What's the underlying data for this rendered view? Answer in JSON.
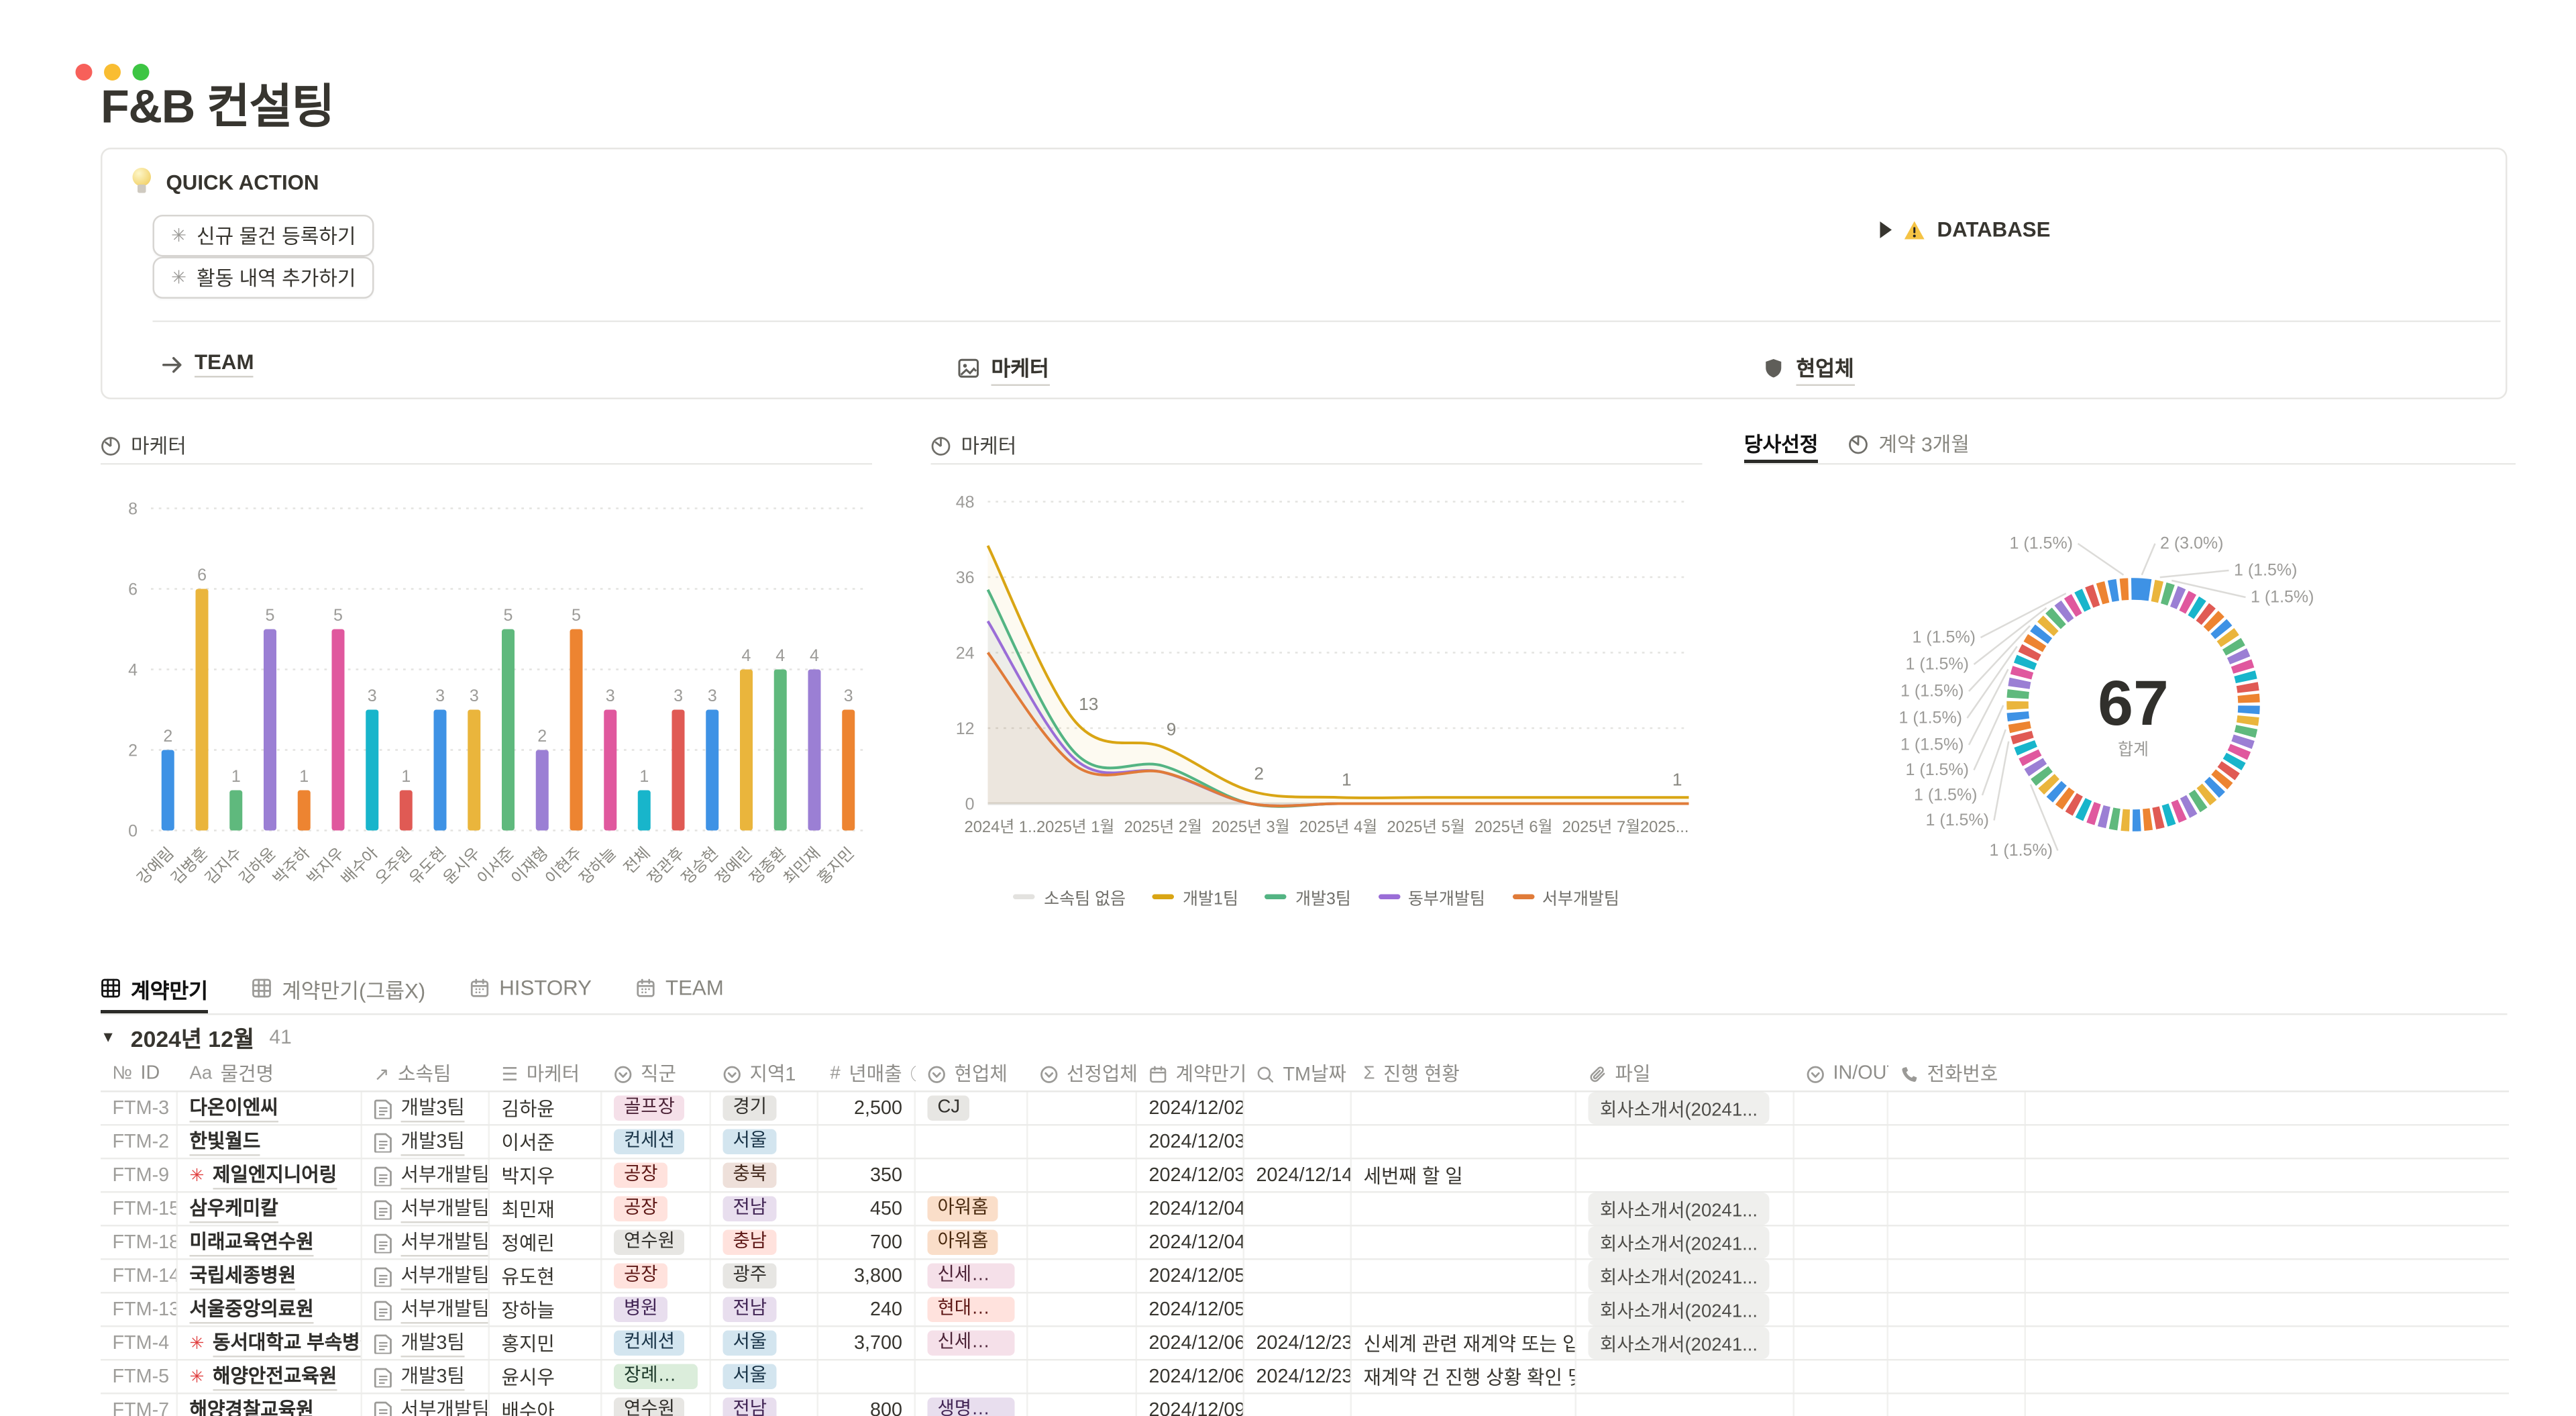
{
  "window": {
    "title": "F&B 컨설팅"
  },
  "callout": {
    "header": "QUICK ACTION",
    "buttons": [
      {
        "label": "신규 물건 등록하기"
      },
      {
        "label": "활동 내역 추가하기"
      }
    ],
    "database": {
      "label": "DATABASE",
      "warning_icon": "warning-icon"
    },
    "links": [
      {
        "label": "TEAM",
        "icon": "arrow-right-icon"
      },
      {
        "label": "마케터",
        "icon": "image-icon"
      },
      {
        "label": "현업체",
        "icon": "shield-icon"
      }
    ]
  },
  "chart_data": [
    {
      "type": "bar",
      "title": "마케터",
      "categories": [
        "강예림",
        "김병훈",
        "김지수",
        "김하윤",
        "박주하",
        "박지우",
        "배수아",
        "오주원",
        "유도현",
        "윤시우",
        "이서준",
        "이재형",
        "이현주",
        "장하늘",
        "전체",
        "정관후",
        "정승현",
        "정예린",
        "정종환",
        "최민재",
        "홍지민"
      ],
      "values": [
        2,
        6,
        1,
        5,
        1,
        5,
        3,
        1,
        3,
        3,
        5,
        2,
        5,
        3,
        1,
        3,
        3,
        4,
        4,
        4,
        3
      ],
      "bar_colors": [
        "#3e92e5",
        "#eab53c",
        "#5fb97d",
        "#9b7fd4",
        "#ed8431",
        "#e0589e",
        "#18b5cb",
        "#e05a54",
        "#3e92e5",
        "#eab53c",
        "#5fb97d",
        "#9b7fd4",
        "#ed8431",
        "#e0589e",
        "#18b5cb",
        "#e05a54",
        "#3e92e5",
        "#eab53c",
        "#5fb97d",
        "#9b7fd4",
        "#ed8431"
      ],
      "ylim": [
        0,
        8
      ],
      "yticks": [
        0,
        2,
        4,
        6,
        8
      ],
      "grid": "dotted horizontal"
    },
    {
      "type": "line",
      "title": "마케터",
      "x": [
        "2024년 1...",
        "2025년 1월",
        "2025년 2월",
        "2025년 3월",
        "2025년 4월",
        "2025년 5월",
        "2025년 6월",
        "2025년 7월",
        "2025..."
      ],
      "series": [
        {
          "name": "소속팀 없음",
          "color": "#e3e2df",
          "values": [
            0,
            0,
            0,
            0,
            0,
            0,
            0,
            0,
            0
          ]
        },
        {
          "name": "개발1팀",
          "color": "#d9a514",
          "values": [
            41,
            13,
            9,
            2,
            1,
            1,
            1,
            1,
            1
          ]
        },
        {
          "name": "개발3팀",
          "color": "#53b483",
          "values": [
            34,
            8,
            6,
            0,
            0,
            0,
            0,
            0,
            0
          ]
        },
        {
          "name": "동부개발팀",
          "color": "#9a6dd7",
          "values": [
            29,
            7,
            5,
            0,
            0,
            0,
            0,
            0,
            0
          ]
        },
        {
          "name": "서부개발팀",
          "color": "#e07b39",
          "values": [
            24,
            6,
            5,
            0,
            0,
            0,
            0,
            0,
            0
          ]
        }
      ],
      "point_labels": [
        {
          "series": "개발1팀",
          "index": 1,
          "text": "13"
        },
        {
          "series": "개발1팀",
          "index": 2,
          "text": "9"
        },
        {
          "series": "개발1팀",
          "index": 3,
          "text": "2"
        },
        {
          "series": "개발1팀",
          "index": 4,
          "text": "1"
        },
        {
          "series": "개발1팀",
          "index": 8,
          "text": "1"
        }
      ],
      "ylim": [
        0,
        48
      ],
      "yticks": [
        0,
        12,
        24,
        36,
        48
      ],
      "legend_position": "bottom",
      "grid": "dotted horizontal"
    },
    {
      "type": "pie",
      "tabs": [
        {
          "label": "당사선정",
          "active": true
        },
        {
          "label": "계약 3개월",
          "active": false,
          "icon": "clock-icon"
        }
      ],
      "center_value": "67",
      "center_caption": "합계",
      "segments_note": "donut of 66 tiny slices: one slice of value 2, 65 slices of value 1, total 67",
      "values": {
        "big_slice": 2,
        "small_slice": 1,
        "small_slice_count": 65,
        "total": 67
      },
      "palette": [
        "#ed8431",
        "#3e92e5",
        "#eab53c",
        "#5fb97d",
        "#9b7fd4",
        "#e0589e",
        "#18b5cb",
        "#e05a54"
      ],
      "labels": [
        "1 (1.5%)",
        "2 (3.0%)",
        "1 (1.5%)",
        "1 (1.5%)",
        "1 (1.5%)",
        "1 (1.5%)",
        "1 (1.5%)",
        "1 (1.5%)",
        "1 (1.5%)",
        "1 (1.5%)",
        "1 (1.5%)",
        "1 (1.5%)",
        "1 (1.5%)"
      ]
    }
  ],
  "view_tabs": [
    {
      "label": "계약만기",
      "icon": "table-icon",
      "active": true
    },
    {
      "label": "계약만기(그룹X)",
      "icon": "table-icon",
      "active": false
    },
    {
      "label": "HISTORY",
      "icon": "calendar-icon",
      "active": false
    },
    {
      "label": "TEAM",
      "icon": "calendar-icon",
      "active": false
    }
  ],
  "table": {
    "group": {
      "label": "2024년 12월",
      "count": "41"
    },
    "columns": [
      {
        "key": "id",
        "icon": "numero",
        "label": "ID"
      },
      {
        "key": "name",
        "icon": "Aa",
        "label": "물건명"
      },
      {
        "key": "team",
        "icon": "arrow-up-right",
        "label": "소속팀"
      },
      {
        "key": "marketer",
        "icon": "lines",
        "label": "마케터"
      },
      {
        "key": "job",
        "icon": "select",
        "label": "직군"
      },
      {
        "key": "region",
        "icon": "select",
        "label": "지역1"
      },
      {
        "key": "revenue",
        "icon": "hash",
        "label": "년매출",
        "info": true
      },
      {
        "key": "partner",
        "icon": "select",
        "label": "현업체"
      },
      {
        "key": "selected",
        "icon": "select",
        "label": "선정업체"
      },
      {
        "key": "expiry",
        "icon": "calendar",
        "label": "계약만기"
      },
      {
        "key": "tm",
        "icon": "search",
        "label": "TM날짜"
      },
      {
        "key": "progress",
        "icon": "sigma",
        "label": "진행 현황"
      },
      {
        "key": "file",
        "icon": "clip",
        "label": "파일"
      },
      {
        "key": "inout",
        "icon": "select",
        "label": "IN/OUT"
      },
      {
        "key": "phone",
        "icon": "phone",
        "label": "전화번호"
      }
    ],
    "rows": [
      {
        "id": "FTM-3",
        "name": "다온이엔씨",
        "name_icon": false,
        "team": "개발3팀",
        "marketer": "김하윤",
        "job": {
          "t": "골프장",
          "c": "pink"
        },
        "region": {
          "t": "경기",
          "c": "gray"
        },
        "revenue": "2,500",
        "partner": {
          "t": "CJ",
          "c": "gray"
        },
        "selected": "",
        "expiry": "2024/12/02",
        "tm": "",
        "progress": "",
        "file": "회사소개서(20241...",
        "inout": "",
        "phone": ""
      },
      {
        "id": "FTM-2",
        "name": "한빛월드",
        "name_icon": false,
        "team": "개발3팀",
        "marketer": "이서준",
        "job": {
          "t": "컨세션",
          "c": "blue"
        },
        "region": {
          "t": "서울",
          "c": "blue"
        },
        "revenue": "",
        "partner": null,
        "selected": "",
        "expiry": "2024/12/03",
        "tm": "",
        "progress": "",
        "file": "",
        "inout": "",
        "phone": ""
      },
      {
        "id": "FTM-9",
        "name": "제일엔지니어링",
        "name_icon": true,
        "team": "서부개발팀",
        "marketer": "박지우",
        "job": {
          "t": "공장",
          "c": "red"
        },
        "region": {
          "t": "충북",
          "c": "brown"
        },
        "revenue": "350",
        "partner": null,
        "selected": "",
        "expiry": "2024/12/03",
        "tm": "2024/12/14",
        "progress": "세번째 할 일",
        "file": "",
        "inout": "",
        "phone": ""
      },
      {
        "id": "FTM-15",
        "name": "삼우케미칼",
        "name_icon": false,
        "team": "서부개발팀",
        "marketer": "최민재",
        "job": {
          "t": "공장",
          "c": "red"
        },
        "region": {
          "t": "전남",
          "c": "purple"
        },
        "revenue": "450",
        "partner": {
          "t": "아워홈",
          "c": "orange"
        },
        "selected": "",
        "expiry": "2024/12/04",
        "tm": "",
        "progress": "",
        "file": "회사소개서(20241...",
        "inout": "",
        "phone": ""
      },
      {
        "id": "FTM-18",
        "name": "미래교육연수원",
        "name_icon": false,
        "team": "서부개발팀",
        "marketer": "정예린",
        "job": {
          "t": "연수원",
          "c": "gray"
        },
        "region": {
          "t": "충남",
          "c": "red"
        },
        "revenue": "700",
        "partner": {
          "t": "아워홈",
          "c": "orange"
        },
        "selected": "",
        "expiry": "2024/12/04",
        "tm": "",
        "progress": "",
        "file": "회사소개서(20241...",
        "inout": "",
        "phone": ""
      },
      {
        "id": "FTM-14",
        "name": "국립세종병원",
        "name_icon": false,
        "team": "서부개발팀",
        "marketer": "유도현",
        "job": {
          "t": "공장",
          "c": "red"
        },
        "region": {
          "t": "광주",
          "c": "gray"
        },
        "revenue": "3,800",
        "partner": {
          "t": "신세계푸드",
          "c": "pink"
        },
        "selected": "",
        "expiry": "2024/12/05",
        "tm": "",
        "progress": "",
        "file": "회사소개서(20241...",
        "inout": "",
        "phone": ""
      },
      {
        "id": "FTM-13",
        "name": "서울중앙의료원",
        "name_icon": false,
        "team": "서부개발팀",
        "marketer": "장하늘",
        "job": {
          "t": "병원",
          "c": "purple"
        },
        "region": {
          "t": "전남",
          "c": "purple"
        },
        "revenue": "240",
        "partner": {
          "t": "현대그린푸드",
          "c": "red"
        },
        "selected": "",
        "expiry": "2024/12/05",
        "tm": "",
        "progress": "",
        "file": "회사소개서(20241...",
        "inout": "",
        "phone": ""
      },
      {
        "id": "FTM-4",
        "name": "동서대학교 부속병원",
        "name_icon": true,
        "team": "개발3팀",
        "marketer": "홍지민",
        "job": {
          "t": "컨세션",
          "c": "blue"
        },
        "region": {
          "t": "서울",
          "c": "blue"
        },
        "revenue": "3,700",
        "partner": {
          "t": "신세계푸드",
          "c": "pink"
        },
        "selected": "",
        "expiry": "2024/12/06",
        "tm": "2024/12/23",
        "progress": "신세계 관련 재계약 또는 입찰 여부",
        "file": "회사소개서(20241...",
        "inout": "",
        "phone": ""
      },
      {
        "id": "FTM-5",
        "name": "해양안전교육원",
        "name_icon": true,
        "team": "개발3팀",
        "marketer": "윤시우",
        "job": {
          "t": "장례식장",
          "c": "green"
        },
        "region": {
          "t": "서울",
          "c": "blue"
        },
        "revenue": "",
        "partner": null,
        "selected": "",
        "expiry": "2024/12/06",
        "tm": "2024/12/23",
        "progress": "재계약 건 진행 상황 확인 및 담당자",
        "file": "",
        "inout": "",
        "phone": ""
      },
      {
        "id": "FTM-7",
        "name": "해양경찰교육원",
        "name_icon": false,
        "team": "서부개발팀",
        "marketer": "배수아",
        "job": {
          "t": "연수원",
          "c": "gray"
        },
        "region": {
          "t": "전남",
          "c": "purple"
        },
        "revenue": "800",
        "partner": {
          "t": "생명푸드",
          "c": "purple"
        },
        "selected": "",
        "expiry": "2024/12/09",
        "tm": "",
        "progress": "",
        "file": "",
        "inout": "",
        "phone": ""
      }
    ]
  }
}
